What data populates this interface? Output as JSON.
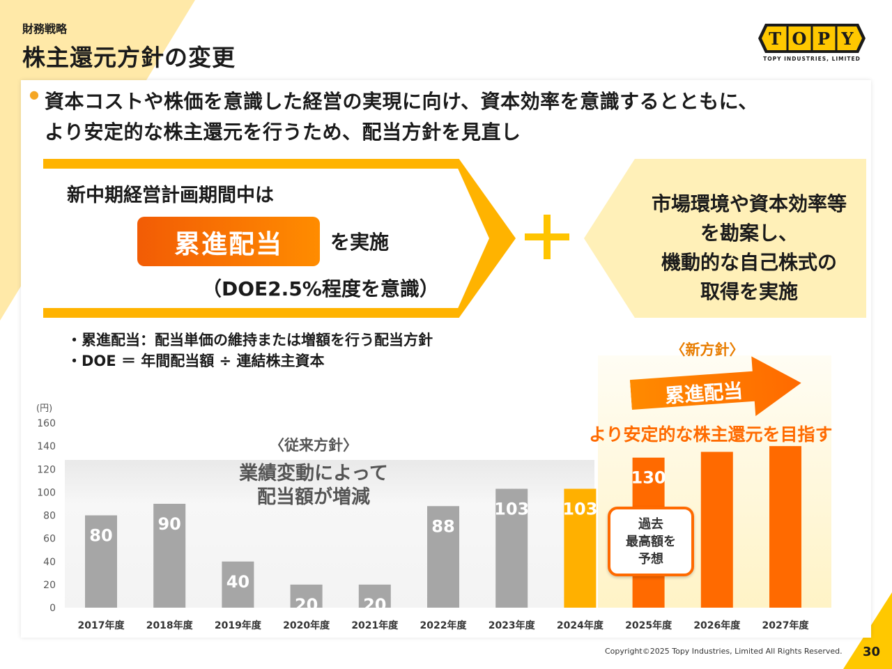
{
  "header": {
    "section_label": "財務戦略",
    "title": "株主還元方針の変更"
  },
  "logo": {
    "letters": [
      "T",
      "O",
      "P",
      "Y"
    ],
    "subtitle": "TOPY INDUSTRIES, LIMITED"
  },
  "headline": {
    "line1": "資本コストや株価を意識した経営の実現に向け、資本効率を意識するとともに、",
    "line2": "より安定的な株主還元を行うため、配当方針を見直し"
  },
  "policy_left": {
    "plan_text": "新中期経営計画期間中は",
    "badge": "累進配当",
    "implement": "を実施",
    "doe": "（DOE2.5%程度を意識）"
  },
  "policy_right": {
    "lines": [
      "市場環境や資本効率等",
      "を勘案し、",
      "機動的な自己株式の",
      "取得を実施"
    ]
  },
  "notes": [
    "・累進配当：配当単価の維持または増額を行う配当方針",
    "・DOE ＝ 年間配当額 ÷ 連結株主資本"
  ],
  "annotations": {
    "old_policy_label": "〈従来方針〉",
    "old_policy_desc_1": "業績変動によって",
    "old_policy_desc_2": "配当額が増減",
    "new_policy_label": "〈新方針〉",
    "new_arrow_label": "累進配当",
    "stable_text": "より安定的な株主還元を目指す",
    "record_callout": [
      "過去",
      "最高額を",
      "予想"
    ]
  },
  "colors": {
    "gray_bar": "#a6a6a6",
    "yellow_bar": "#ffb000",
    "orange_bar": "#ff6a00",
    "accent": "#ffc400"
  },
  "chart_data": {
    "type": "bar",
    "ylabel": "(円)",
    "ylim": [
      0,
      160
    ],
    "yticks": [
      0,
      20,
      40,
      60,
      80,
      100,
      120,
      140,
      160
    ],
    "categories": [
      "2017年度",
      "2018年度",
      "2019年度",
      "2020年度",
      "2021年度",
      "2022年度",
      "2023年度",
      "2024年度",
      "2025年度",
      "2026年度",
      "2027年度"
    ],
    "values": [
      80,
      90,
      40,
      20,
      20,
      88,
      103,
      103,
      130,
      135,
      140
    ],
    "labels": [
      "80",
      "90",
      "40",
      "20",
      "20",
      "88",
      "103",
      "103",
      "130",
      "",
      ""
    ],
    "bar_colors": [
      "gray",
      "gray",
      "gray",
      "gray",
      "gray",
      "gray",
      "gray",
      "yellow",
      "orange",
      "orange",
      "orange"
    ],
    "grid": false,
    "legend": "none"
  },
  "footer": {
    "copyright": "Copyright©2025 Topy Industries, Limited All Rights Reserved.",
    "page": "30"
  }
}
